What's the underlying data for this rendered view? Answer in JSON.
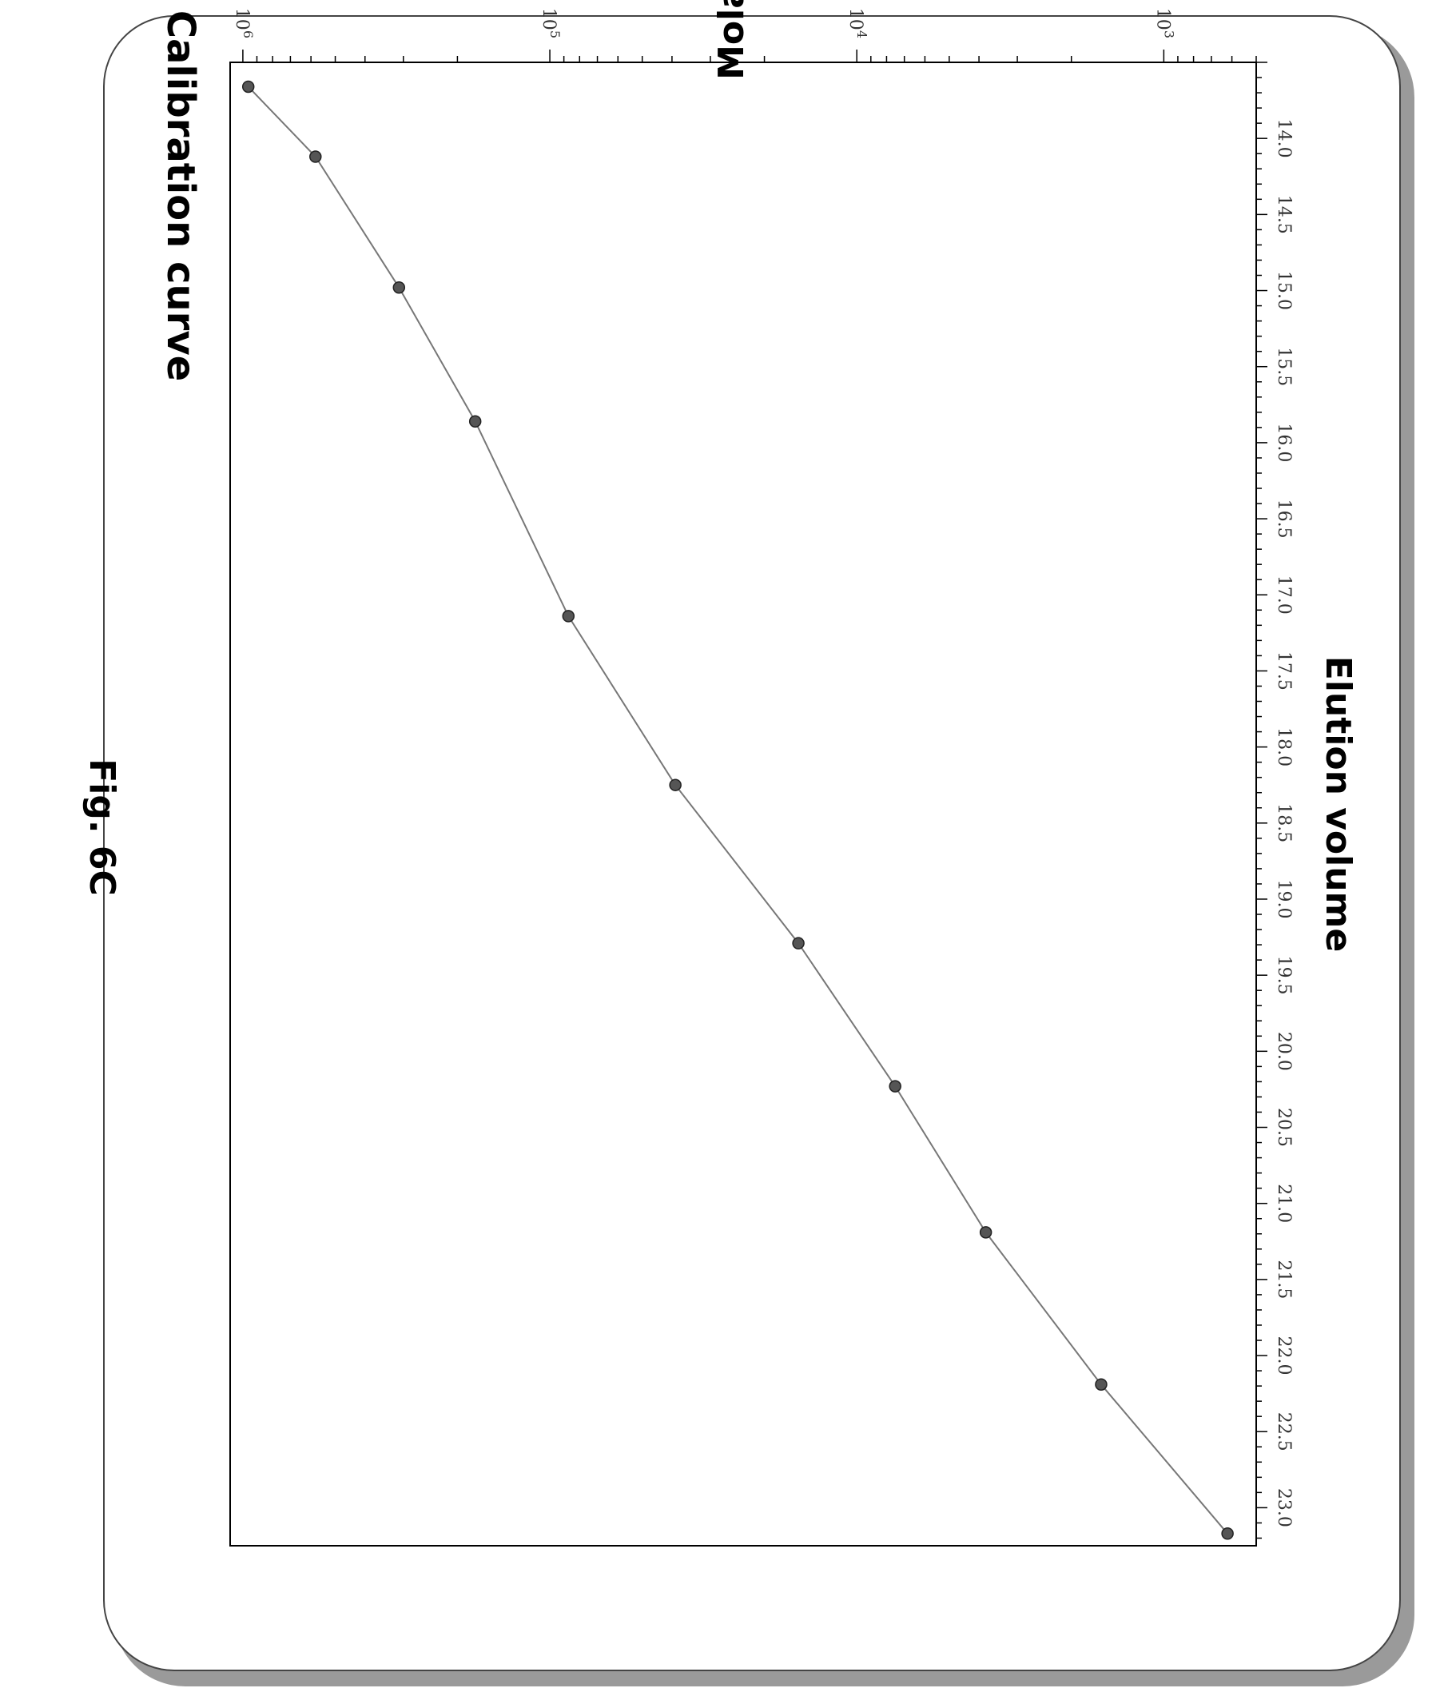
{
  "figure_label": "Fig. 6C",
  "chart_data": {
    "type": "scatter",
    "title": "Calibration curve",
    "xlabel": "Elution volume",
    "ylabel": "Molar mass",
    "x_scale": "linear",
    "y_scale": "log",
    "xlim": [
      13.5,
      23.25
    ],
    "ylim": [
      500,
      1100000
    ],
    "x_ticks": [
      "14.0",
      "14.5",
      "15.0",
      "15.5",
      "16.0",
      "16.5",
      "17.0",
      "17.5",
      "18.0",
      "18.5",
      "19.0",
      "19.5",
      "20.0",
      "20.5",
      "21.0",
      "21.5",
      "22.0",
      "22.5",
      "23.0"
    ],
    "y_ticks": [
      {
        "base": "10",
        "exp": "6",
        "value": 1000000
      },
      {
        "base": "10",
        "exp": "5",
        "value": 100000
      },
      {
        "base": "10",
        "exp": "4",
        "value": 10000
      },
      {
        "base": "10",
        "exp": "3",
        "value": 1000
      }
    ],
    "grid": false,
    "series": [
      {
        "points": [
          {
            "x": 13.66,
            "y": 960000
          },
          {
            "x": 14.12,
            "y": 580000
          },
          {
            "x": 14.98,
            "y": 310000
          },
          {
            "x": 15.86,
            "y": 175000
          },
          {
            "x": 17.14,
            "y": 87000
          },
          {
            "x": 18.25,
            "y": 39000
          },
          {
            "x": 19.29,
            "y": 15500
          },
          {
            "x": 20.23,
            "y": 7500
          },
          {
            "x": 21.19,
            "y": 3800
          },
          {
            "x": 22.19,
            "y": 1600
          },
          {
            "x": 23.17,
            "y": 620
          }
        ],
        "fit_line": true
      }
    ]
  }
}
